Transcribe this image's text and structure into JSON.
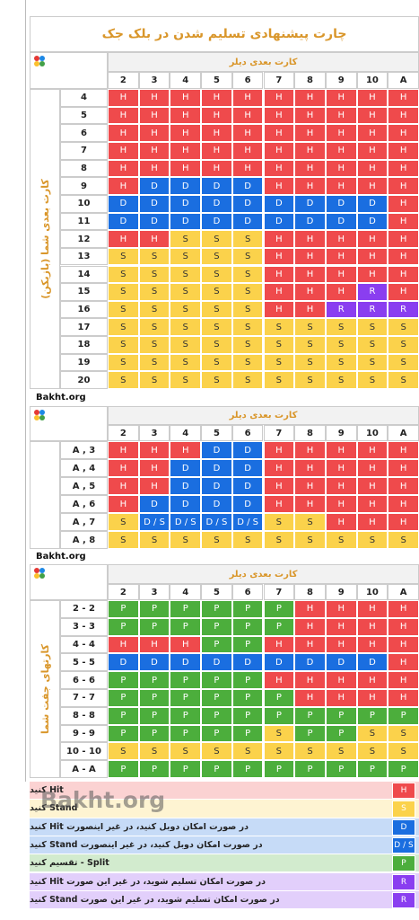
{
  "title": "چارت پیشنهادی تسلیم شدن در بلک جک",
  "tables": [
    {
      "dealer_label": "کارت بعدی دیلر",
      "columns": [
        "2",
        "3",
        "4",
        "5",
        "6",
        "7",
        "8",
        "9",
        "10",
        "A"
      ],
      "side_label": "کارت بعدی شما (بازیکن)",
      "rows": [
        {
          "label": "4",
          "cells": [
            "H",
            "H",
            "H",
            "H",
            "H",
            "H",
            "H",
            "H",
            "H",
            "H"
          ]
        },
        {
          "label": "5",
          "cells": [
            "H",
            "H",
            "H",
            "H",
            "H",
            "H",
            "H",
            "H",
            "H",
            "H"
          ]
        },
        {
          "label": "6",
          "cells": [
            "H",
            "H",
            "H",
            "H",
            "H",
            "H",
            "H",
            "H",
            "H",
            "H"
          ]
        },
        {
          "label": "7",
          "cells": [
            "H",
            "H",
            "H",
            "H",
            "H",
            "H",
            "H",
            "H",
            "H",
            "H"
          ]
        },
        {
          "label": "8",
          "cells": [
            "H",
            "H",
            "H",
            "H",
            "H",
            "H",
            "H",
            "H",
            "H",
            "H"
          ]
        },
        {
          "label": "9",
          "cells": [
            "H",
            "D",
            "D",
            "D",
            "D",
            "H",
            "H",
            "H",
            "H",
            "H"
          ]
        },
        {
          "label": "10",
          "cells": [
            "D",
            "D",
            "D",
            "D",
            "D",
            "D",
            "D",
            "D",
            "D",
            "H"
          ]
        },
        {
          "label": "11",
          "cells": [
            "D",
            "D",
            "D",
            "D",
            "D",
            "D",
            "D",
            "D",
            "D",
            "H"
          ]
        },
        {
          "label": "12",
          "cells": [
            "H",
            "H",
            "S",
            "S",
            "S",
            "H",
            "H",
            "H",
            "H",
            "H"
          ]
        },
        {
          "label": "13",
          "cells": [
            "S",
            "S",
            "S",
            "S",
            "S",
            "H",
            "H",
            "H",
            "H",
            "H"
          ]
        },
        {
          "label": "14",
          "cells": [
            "S",
            "S",
            "S",
            "S",
            "S",
            "H",
            "H",
            "H",
            "H",
            "H"
          ]
        },
        {
          "label": "15",
          "cells": [
            "S",
            "S",
            "S",
            "S",
            "S",
            "H",
            "H",
            "H",
            "R",
            "H"
          ]
        },
        {
          "label": "16",
          "cells": [
            "S",
            "S",
            "S",
            "S",
            "S",
            "H",
            "H",
            "R",
            "R",
            "R"
          ]
        },
        {
          "label": "17",
          "cells": [
            "S",
            "S",
            "S",
            "S",
            "S",
            "S",
            "S",
            "S",
            "S",
            "S"
          ]
        },
        {
          "label": "18",
          "cells": [
            "S",
            "S",
            "S",
            "S",
            "S",
            "S",
            "S",
            "S",
            "S",
            "S"
          ]
        },
        {
          "label": "19",
          "cells": [
            "S",
            "S",
            "S",
            "S",
            "S",
            "S",
            "S",
            "S",
            "S",
            "S"
          ]
        },
        {
          "label": "20",
          "cells": [
            "S",
            "S",
            "S",
            "S",
            "S",
            "S",
            "S",
            "S",
            "S",
            "S"
          ]
        }
      ],
      "footer": "Bakht.org"
    },
    {
      "dealer_label": "کارت بعدی دیلر",
      "columns": [
        "2",
        "3",
        "4",
        "5",
        "6",
        "7",
        "8",
        "9",
        "10",
        "A"
      ],
      "rows": [
        {
          "label": "A , 3",
          "cells": [
            "H",
            "H",
            "H",
            "D",
            "D",
            "H",
            "H",
            "H",
            "H",
            "H"
          ]
        },
        {
          "label": "A , 4",
          "cells": [
            "H",
            "H",
            "D",
            "D",
            "D",
            "H",
            "H",
            "H",
            "H",
            "H"
          ]
        },
        {
          "label": "A , 5",
          "cells": [
            "H",
            "H",
            "D",
            "D",
            "D",
            "H",
            "H",
            "H",
            "H",
            "H"
          ]
        },
        {
          "label": "A , 6",
          "cells": [
            "H",
            "D",
            "D",
            "D",
            "D",
            "H",
            "H",
            "H",
            "H",
            "H"
          ]
        },
        {
          "label": "A , 7",
          "cells": [
            "S",
            "D / S",
            "D / S",
            "D / S",
            "D / S",
            "S",
            "S",
            "H",
            "H",
            "H"
          ]
        },
        {
          "label": "A , 8",
          "cells": [
            "S",
            "S",
            "S",
            "S",
            "S",
            "S",
            "S",
            "S",
            "S",
            "S"
          ]
        }
      ],
      "footer": "Bakht.org"
    },
    {
      "dealer_label": "کارت بعدی دیلر",
      "columns": [
        "2",
        "3",
        "4",
        "5",
        "6",
        "7",
        "8",
        "9",
        "10",
        "A"
      ],
      "side_label": "کارتهای جفت شما",
      "rows": [
        {
          "label": "2 - 2",
          "cells": [
            "P",
            "P",
            "P",
            "P",
            "P",
            "P",
            "H",
            "H",
            "H",
            "H"
          ]
        },
        {
          "label": "3 - 3",
          "cells": [
            "P",
            "P",
            "P",
            "P",
            "P",
            "P",
            "H",
            "H",
            "H",
            "H"
          ]
        },
        {
          "label": "4 - 4",
          "cells": [
            "H",
            "H",
            "H",
            "P",
            "P",
            "H",
            "H",
            "H",
            "H",
            "H"
          ]
        },
        {
          "label": "5 - 5",
          "cells": [
            "D",
            "D",
            "D",
            "D",
            "D",
            "D",
            "D",
            "D",
            "D",
            "H"
          ]
        },
        {
          "label": "6 - 6",
          "cells": [
            "P",
            "P",
            "P",
            "P",
            "P",
            "H",
            "H",
            "H",
            "H",
            "H"
          ]
        },
        {
          "label": "7 - 7",
          "cells": [
            "P",
            "P",
            "P",
            "P",
            "P",
            "P",
            "H",
            "H",
            "H",
            "H"
          ]
        },
        {
          "label": "8 - 8",
          "cells": [
            "P",
            "P",
            "P",
            "P",
            "P",
            "P",
            "P",
            "P",
            "P",
            "P"
          ]
        },
        {
          "label": "9 - 9",
          "cells": [
            "P",
            "P",
            "P",
            "P",
            "P",
            "S",
            "P",
            "P",
            "S",
            "S"
          ]
        },
        {
          "label": "10 - 10",
          "cells": [
            "S",
            "S",
            "S",
            "S",
            "S",
            "S",
            "S",
            "S",
            "S",
            "S"
          ]
        },
        {
          "label": "A - A",
          "cells": [
            "P",
            "P",
            "P",
            "P",
            "P",
            "P",
            "P",
            "P",
            "P",
            "P"
          ]
        }
      ]
    }
  ],
  "legend": {
    "watermark": "Bakht.org",
    "items": [
      {
        "code": "H",
        "color": "#ef4a4c",
        "text": "Hit کنید"
      },
      {
        "code": "S",
        "color": "#fbd24b",
        "text": "Stand کنید"
      },
      {
        "code": "D",
        "color": "#1a6ee0",
        "text": "در صورت امکان دوبل کنید، در غیر اینصورت Hit کنید"
      },
      {
        "code": "D / S",
        "color": "#1a6ee0",
        "text": "در صورت امکان دوبل کنید، در غیر اینصورت Stand کنید"
      },
      {
        "code": "P",
        "color": "#4cae3c",
        "text": "Split - تقسیم کنید"
      },
      {
        "code": "R",
        "color": "#8a3ef0",
        "text": "در صورت امکان تسلیم شوید، در غیر این صورت Hit کنید"
      },
      {
        "code": "R",
        "color": "#8a3ef0",
        "text": "در صورت امکان تسلیم شوید، در غیر این صورت Stand کنید"
      }
    ]
  }
}
